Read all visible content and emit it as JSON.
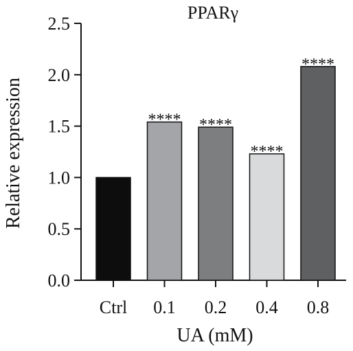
{
  "chart_data": {
    "type": "bar",
    "title": "PPARγ",
    "xlabel": "UA (mM)",
    "ylabel": "Relative expression",
    "categories": [
      "Ctrl",
      "0.1",
      "0.2",
      "0.4",
      "0.8"
    ],
    "values": [
      1.0,
      1.54,
      1.49,
      1.23,
      2.08
    ],
    "significance": [
      "",
      "****",
      "****",
      "****",
      "****"
    ],
    "bar_colors": [
      "#0d0d0d",
      "#a3a5a8",
      "#7c7e80",
      "#d9dadb",
      "#5f6062"
    ],
    "ylim": [
      0,
      2.5
    ],
    "yticks": [
      "0.0",
      "0.5",
      "1.0",
      "1.5",
      "2.0",
      "2.5"
    ],
    "grid": false,
    "legend": "none"
  }
}
